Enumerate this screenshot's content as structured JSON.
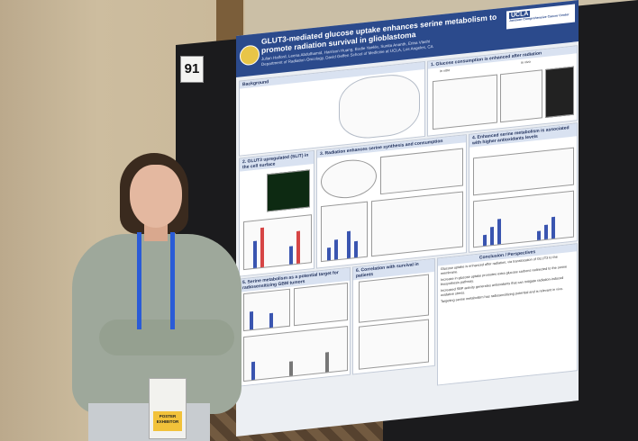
{
  "board_number": "91",
  "poster": {
    "title": "GLUT3-mediated glucose uptake enhances serine metabolism to promote radiation survival in glioblastoma",
    "authors": "Julian Halford, Leena Abdulhamid, Harrison Huang, Bodie Yaekle, Sunita Ananth, Erina Vlashi",
    "affiliation": "Department of Radiation Oncology, David Geffen School of Medicine at UCLA, Los Angeles, CA",
    "logo_text": "UCLA",
    "logo_sub": "Jonsson Comprehensive Cancer Center",
    "sections": {
      "background": "Background",
      "s1": "1. Glucose consumption is enhanced after radiation",
      "s1_invitro": "in vitro",
      "s1_invivo": "in vivo",
      "s2": "2. GLUT3 upregulated (SLIT) in the cell surface",
      "s3": "3. Radiation enhances serine synthesis and consumption",
      "s4": "4. Enhanced serine metabolism is associated with higher antioxidants levels",
      "s5": "5. Serine metabolism as a potential target for radiosensitizing GBM tumors",
      "s6": "6. Correlation with survival in patients",
      "conclusion": "Conclusion / Perspectives"
    },
    "conclusions": [
      "Glucose uptake is enhanced after radiation, via translocation of GLUT3 to the membrane.",
      "Increase in glucose uptake promotes extra glucose carbons redirected to the serine biosynthesis pathway.",
      "Increased SBP activity generates antioxidants that can mitigate radiation-induced oxidative stress.",
      "Targeting serine metabolism has radiosensitizing potential and is relevant in vivo."
    ]
  },
  "badge": {
    "line1": "POSTER",
    "line2": "EXHIBITOR"
  }
}
